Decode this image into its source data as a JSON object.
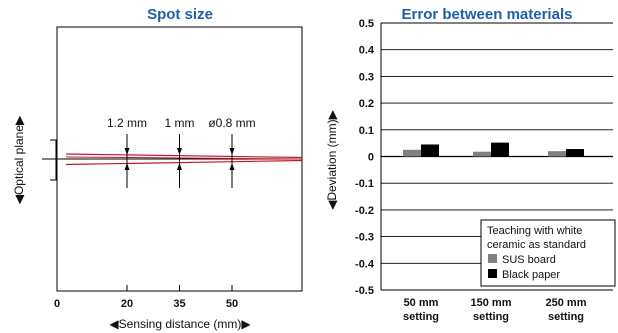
{
  "chart_data": [
    {
      "type": "line",
      "title": "Spot size",
      "xlabel": "◀Sensing distance (mm)▶",
      "ylabel": "◀Optical plane▶",
      "x_ticks": [
        "0",
        "20",
        "35",
        "50"
      ],
      "x_range": [
        0,
        70
      ],
      "annotations": [
        {
          "x": 20,
          "text": "1.2 mm"
        },
        {
          "x": 35,
          "text": "1 mm"
        },
        {
          "x": 50,
          "text": "ø0.8 mm"
        }
      ],
      "line_color": "#c0182a"
    },
    {
      "type": "bar",
      "title": "Error between materials",
      "ylabel": "◀Deviation (mm)▶",
      "ylim": [
        -0.5,
        0.5
      ],
      "y_ticks": [
        "0.5",
        "0.4",
        "0.3",
        "0.2",
        "0.1",
        "0",
        "-0.1",
        "-0.2",
        "-0.3",
        "-0.4",
        "-0.5"
      ],
      "categories": [
        {
          "line1": "50 mm",
          "line2": "setting"
        },
        {
          "line1": "150 mm",
          "line2": "setting"
        },
        {
          "line1": "250 mm",
          "line2": "setting"
        }
      ],
      "series": [
        {
          "name": "SUS board",
          "values": [
            0.025,
            0.018,
            0.02
          ],
          "color": "#808080"
        },
        {
          "name": "Black paper",
          "values": [
            0.045,
            0.052,
            0.028
          ],
          "color": "#000000"
        }
      ],
      "legend": {
        "title_line1": "Teaching with white",
        "title_line2": "ceramic as standard",
        "placement": "bottom-right"
      },
      "grid": true
    }
  ]
}
